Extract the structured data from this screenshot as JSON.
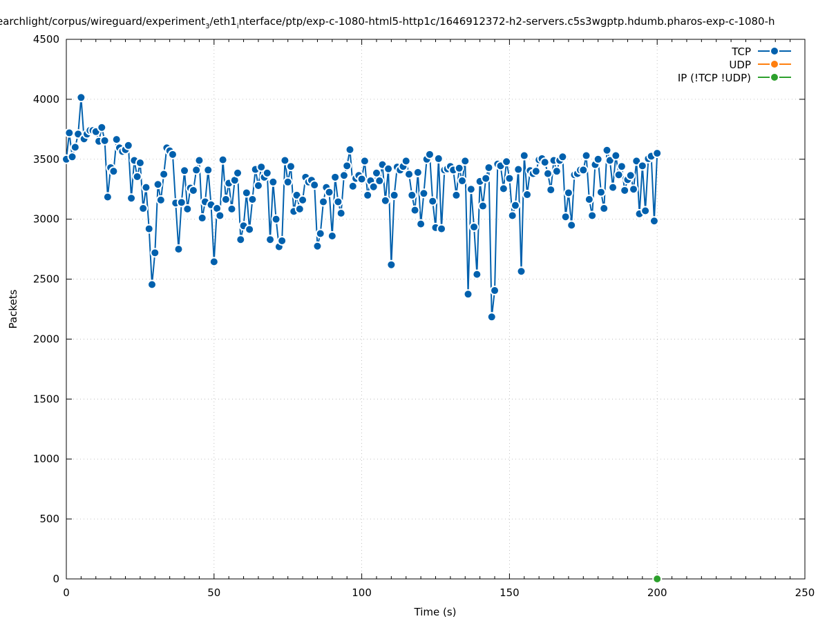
{
  "chart_data": {
    "type": "line",
    "title_main": "earchlight/corpus/wireguard/experiment",
    "title_sub1": "3",
    "title_mid": "/eth1",
    "title_sub2": "i",
    "title_rest": "nterface/ptp/exp-c-1080-html5-http1c/1646912372-h2-servers.c5s3wgptp.hdumb.pharos-exp-c-1080-h",
    "xlabel": "Time (s)",
    "ylabel": "Packets",
    "xlim": [
      0,
      250
    ],
    "ylim": [
      0,
      4500
    ],
    "xticks": [
      0,
      50,
      100,
      150,
      200,
      250
    ],
    "xtick_labels": [
      "0",
      "50",
      "100",
      "150",
      "200",
      "250"
    ],
    "yticks": [
      0,
      500,
      1000,
      1500,
      2000,
      2500,
      3000,
      3500,
      4000,
      4500
    ],
    "ytick_labels": [
      "0",
      "500",
      "1000",
      "1500",
      "2000",
      "2500",
      "3000",
      "3500",
      "4000",
      "4500"
    ],
    "grid": true,
    "legend_position": "top-right",
    "series": [
      {
        "name": "TCP",
        "color": "#0060ad",
        "x": [
          0,
          1,
          2,
          3,
          4,
          5,
          6,
          7,
          8,
          9,
          10,
          11,
          12,
          13,
          14,
          15,
          16,
          17,
          18,
          19,
          20,
          21,
          22,
          23,
          24,
          25,
          26,
          27,
          28,
          29,
          30,
          31,
          32,
          33,
          34,
          35,
          36,
          37,
          38,
          39,
          40,
          41,
          42,
          43,
          44,
          45,
          46,
          47,
          48,
          49,
          50,
          51,
          52,
          53,
          54,
          55,
          56,
          57,
          58,
          59,
          60,
          61,
          62,
          63,
          64,
          65,
          66,
          67,
          68,
          69,
          70,
          71,
          72,
          73,
          74,
          75,
          76,
          77,
          78,
          79,
          80,
          81,
          82,
          83,
          84,
          85,
          86,
          87,
          88,
          89,
          90,
          91,
          92,
          93,
          94,
          95,
          96,
          97,
          98,
          99,
          100,
          101,
          102,
          103,
          104,
          105,
          106,
          107,
          108,
          109,
          110,
          111,
          112,
          113,
          114,
          115,
          116,
          117,
          118,
          119,
          120,
          121,
          122,
          123,
          124,
          125,
          126,
          127,
          128,
          129,
          130,
          131,
          132,
          133,
          134,
          135,
          136,
          137,
          138,
          139,
          140,
          141,
          142,
          143,
          144,
          145,
          146,
          147,
          148,
          149,
          150,
          151,
          152,
          153,
          154,
          155,
          156,
          157,
          158,
          159,
          160,
          161,
          162,
          163,
          164,
          165,
          166,
          167,
          168,
          169,
          170,
          171,
          172,
          173,
          174,
          175,
          176,
          177,
          178,
          179,
          180,
          181,
          182,
          183,
          184,
          185,
          186,
          187,
          188,
          189,
          190,
          191,
          192,
          193,
          194,
          195,
          196,
          197,
          198,
          199,
          200
        ],
        "values": [
          3500,
          3720,
          3520,
          3600,
          3710,
          4015,
          3670,
          3710,
          3740,
          3740,
          3730,
          3650,
          3765,
          3655,
          3185,
          3430,
          3400,
          3665,
          3595,
          3565,
          3580,
          3615,
          3175,
          3490,
          3355,
          3470,
          3090,
          3265,
          2920,
          2455,
          2720,
          3290,
          3160,
          3375,
          3595,
          3570,
          3540,
          3135,
          2750,
          3140,
          3405,
          3085,
          3260,
          3240,
          3410,
          3490,
          3010,
          3145,
          3410,
          3120,
          2645,
          3090,
          3030,
          3495,
          3165,
          3300,
          3085,
          3325,
          3385,
          2830,
          2945,
          3220,
          2915,
          3165,
          3415,
          3280,
          3435,
          3350,
          3385,
          2830,
          3310,
          3000,
          2770,
          2820,
          3490,
          3310,
          3440,
          3065,
          3200,
          3085,
          3160,
          3350,
          3310,
          3325,
          3285,
          2775,
          2880,
          3145,
          3265,
          3225,
          2860,
          3350,
          3145,
          3050,
          3365,
          3445,
          3580,
          3275,
          3340,
          3365,
          3335,
          3485,
          3200,
          3320,
          3270,
          3385,
          3320,
          3455,
          3155,
          3420,
          2620,
          3200,
          3435,
          3410,
          3440,
          3485,
          3375,
          3200,
          3075,
          3390,
          2960,
          3215,
          3500,
          3540,
          3150,
          2930,
          3505,
          2920,
          3410,
          3420,
          3440,
          3410,
          3200,
          3425,
          3320,
          3485,
          2375,
          3250,
          2935,
          2540,
          3315,
          3110,
          3340,
          3430,
          2185,
          2405,
          3460,
          3445,
          3255,
          3480,
          3340,
          3030,
          3115,
          3415,
          2565,
          3530,
          3205,
          3405,
          3380,
          3400,
          3495,
          3505,
          3475,
          3380,
          3245,
          3490,
          3400,
          3490,
          3520,
          3020,
          3220,
          2950,
          3370,
          3380,
          3410,
          3410,
          3530,
          3165,
          3030,
          3455,
          3500,
          3225,
          3090,
          3575,
          3490,
          3265,
          3530,
          3370,
          3440,
          3240,
          3330,
          3365,
          3250,
          3485,
          3045,
          3445,
          3070,
          3505,
          3525,
          2985,
          3550
        ]
      },
      {
        "name": "UDP",
        "color": "#ff7f0e",
        "x": [],
        "values": []
      },
      {
        "name": "IP (!TCP  !UDP)",
        "color": "#2ca02c",
        "x": [
          200
        ],
        "values": [
          0
        ]
      }
    ]
  }
}
